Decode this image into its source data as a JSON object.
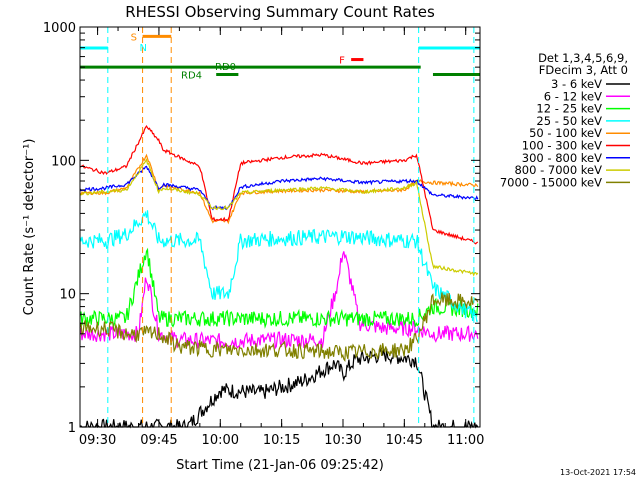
{
  "chart_data": {
    "type": "line",
    "title": "RHESSI Observing Summary Count Rates",
    "xlabel": "Start Time (21-Jan-06 09:25:42)",
    "ylabel": "Count Rate (s⁻¹ detector⁻¹)",
    "yscale": "log",
    "ylim": [
      1,
      1000
    ],
    "xlim": [
      "09:25:42",
      "11:03:30"
    ],
    "x_ticks": [
      "09:30",
      "09:45",
      "10:00",
      "10:15",
      "10:30",
      "10:45",
      "11:00"
    ],
    "y_ticks": [
      "1",
      "10",
      "100",
      "1000"
    ],
    "legend_header": [
      "Det 1,3,4,5,6,9,",
      "FDecim 3, Att 0"
    ],
    "timestamp": "13-Oct-2021 17:54",
    "series": [
      {
        "name": "3 - 6 keV",
        "color": "#000000",
        "x": [
          "09:25",
          "09:32",
          "09:37",
          "09:45",
          "09:52",
          "10:00",
          "10:10",
          "10:20",
          "10:28",
          "10:30",
          "10:33",
          "10:40",
          "10:48",
          "10:52",
          "10:56",
          "11:03"
        ],
        "values": [
          1,
          1,
          1,
          1,
          1,
          1.9,
          1.8,
          2.2,
          3,
          2.5,
          3.2,
          3.5,
          3.2,
          1,
          1,
          1
        ]
      },
      {
        "name": "6 - 12 keV",
        "color": "#ff00ff",
        "x": [
          "09:25",
          "09:30",
          "09:37",
          "09:40",
          "09:42",
          "09:45",
          "09:50",
          "10:00",
          "10:15",
          "10:25",
          "10:29",
          "10:30",
          "10:32",
          "10:34",
          "10:40",
          "10:48",
          "10:52",
          "11:03"
        ],
        "values": [
          5,
          5,
          5,
          5,
          14,
          5,
          4.5,
          4.4,
          4.5,
          4.5,
          13,
          22,
          12,
          6,
          5.5,
          5.5,
          5,
          5
        ]
      },
      {
        "name": "12 - 25 keV",
        "color": "#00ff00",
        "x": [
          "09:25",
          "09:37",
          "09:42",
          "09:45",
          "09:50",
          "10:00",
          "10:15",
          "10:30",
          "10:45",
          "10:48",
          "10:52",
          "11:03"
        ],
        "values": [
          6.5,
          6.5,
          22,
          6.5,
          6.5,
          6.5,
          6.5,
          6.5,
          6.5,
          6.5,
          8,
          7.5
        ]
      },
      {
        "name": "25 - 50 keV",
        "color": "#00ffff",
        "x": [
          "09:25",
          "09:32",
          "09:37",
          "09:42",
          "09:45",
          "09:46",
          "09:55",
          "09:58",
          "10:02",
          "10:05",
          "10:15",
          "10:30",
          "10:45",
          "10:48",
          "10:52",
          "11:03"
        ],
        "values": [
          25,
          25,
          28,
          40,
          25,
          25,
          25,
          10,
          10,
          25,
          26,
          27,
          25,
          25,
          11,
          6.5
        ]
      },
      {
        "name": "50 - 100 keV",
        "color": "#ff8c00",
        "x": [
          "09:25",
          "09:32",
          "09:37",
          "09:42",
          "09:45",
          "09:46",
          "09:55",
          "09:58",
          "10:02",
          "10:05",
          "10:15",
          "10:25",
          "10:35",
          "10:45",
          "10:48",
          "10:52",
          "11:03"
        ],
        "values": [
          57,
          57,
          62,
          110,
          60,
          65,
          57,
          35,
          35,
          57,
          59,
          60,
          58,
          60,
          70,
          68,
          65
        ]
      },
      {
        "name": "100 - 300 keV",
        "color": "#ff0000",
        "x": [
          "09:25",
          "09:32",
          "09:37",
          "09:42",
          "09:45",
          "09:46",
          "09:55",
          "09:58",
          "10:02",
          "10:05",
          "10:15",
          "10:25",
          "10:35",
          "10:45",
          "10:48",
          "10:52",
          "11:03"
        ],
        "values": [
          92,
          80,
          90,
          180,
          140,
          120,
          90,
          36,
          36,
          95,
          105,
          110,
          95,
          100,
          110,
          30,
          24
        ]
      },
      {
        "name": "300 - 800 keV",
        "color": "#0000ff",
        "x": [
          "09:25",
          "09:32",
          "09:37",
          "09:42",
          "09:45",
          "09:46",
          "09:55",
          "09:58",
          "10:02",
          "10:05",
          "10:15",
          "10:25",
          "10:35",
          "10:45",
          "10:48",
          "10:52",
          "11:03"
        ],
        "values": [
          60,
          62,
          66,
          90,
          62,
          66,
          60,
          44,
          44,
          63,
          70,
          73,
          68,
          70,
          70,
          55,
          52
        ]
      },
      {
        "name": "800 - 7000 keV",
        "color": "#cccc00",
        "x": [
          "09:25",
          "09:32",
          "09:37",
          "09:42",
          "09:45",
          "09:46",
          "09:55",
          "09:58",
          "10:02",
          "10:05",
          "10:15",
          "10:25",
          "10:35",
          "10:45",
          "10:48",
          "10:52",
          "11:03"
        ],
        "values": [
          56,
          58,
          60,
          100,
          58,
          62,
          56,
          44,
          44,
          57,
          60,
          62,
          58,
          62,
          68,
          16,
          14
        ]
      },
      {
        "name": "7000 - 15000 keV",
        "color": "#808000",
        "x": [
          "09:25",
          "09:32",
          "09:37",
          "09:42",
          "09:45",
          "09:50",
          "10:00",
          "10:15",
          "10:30",
          "10:45",
          "10:48",
          "10:52",
          "11:03"
        ],
        "values": [
          5.5,
          5.5,
          5,
          5,
          5,
          4,
          3.8,
          3.8,
          3.6,
          3.8,
          4.5,
          9,
          8.5
        ]
      }
    ],
    "annotations": [
      {
        "label": "S",
        "color": "#ff8c00",
        "x_start": "09:41",
        "x_end": "09:48",
        "y": 850
      },
      {
        "label": "N",
        "color": "#00ffff",
        "x": "09:40:30"
      },
      {
        "label": "F",
        "color": "#ff0000",
        "x_start": "10:32",
        "x_end": "10:35",
        "y": 570
      },
      {
        "label": "RD0",
        "color": "#008000",
        "x_start": "09:25:42",
        "x_end": "10:49",
        "y": 500
      },
      {
        "label": "RD4",
        "color": "#008000",
        "x_start": "09:59",
        "x_end": "10:01",
        "y": 440
      }
    ]
  }
}
